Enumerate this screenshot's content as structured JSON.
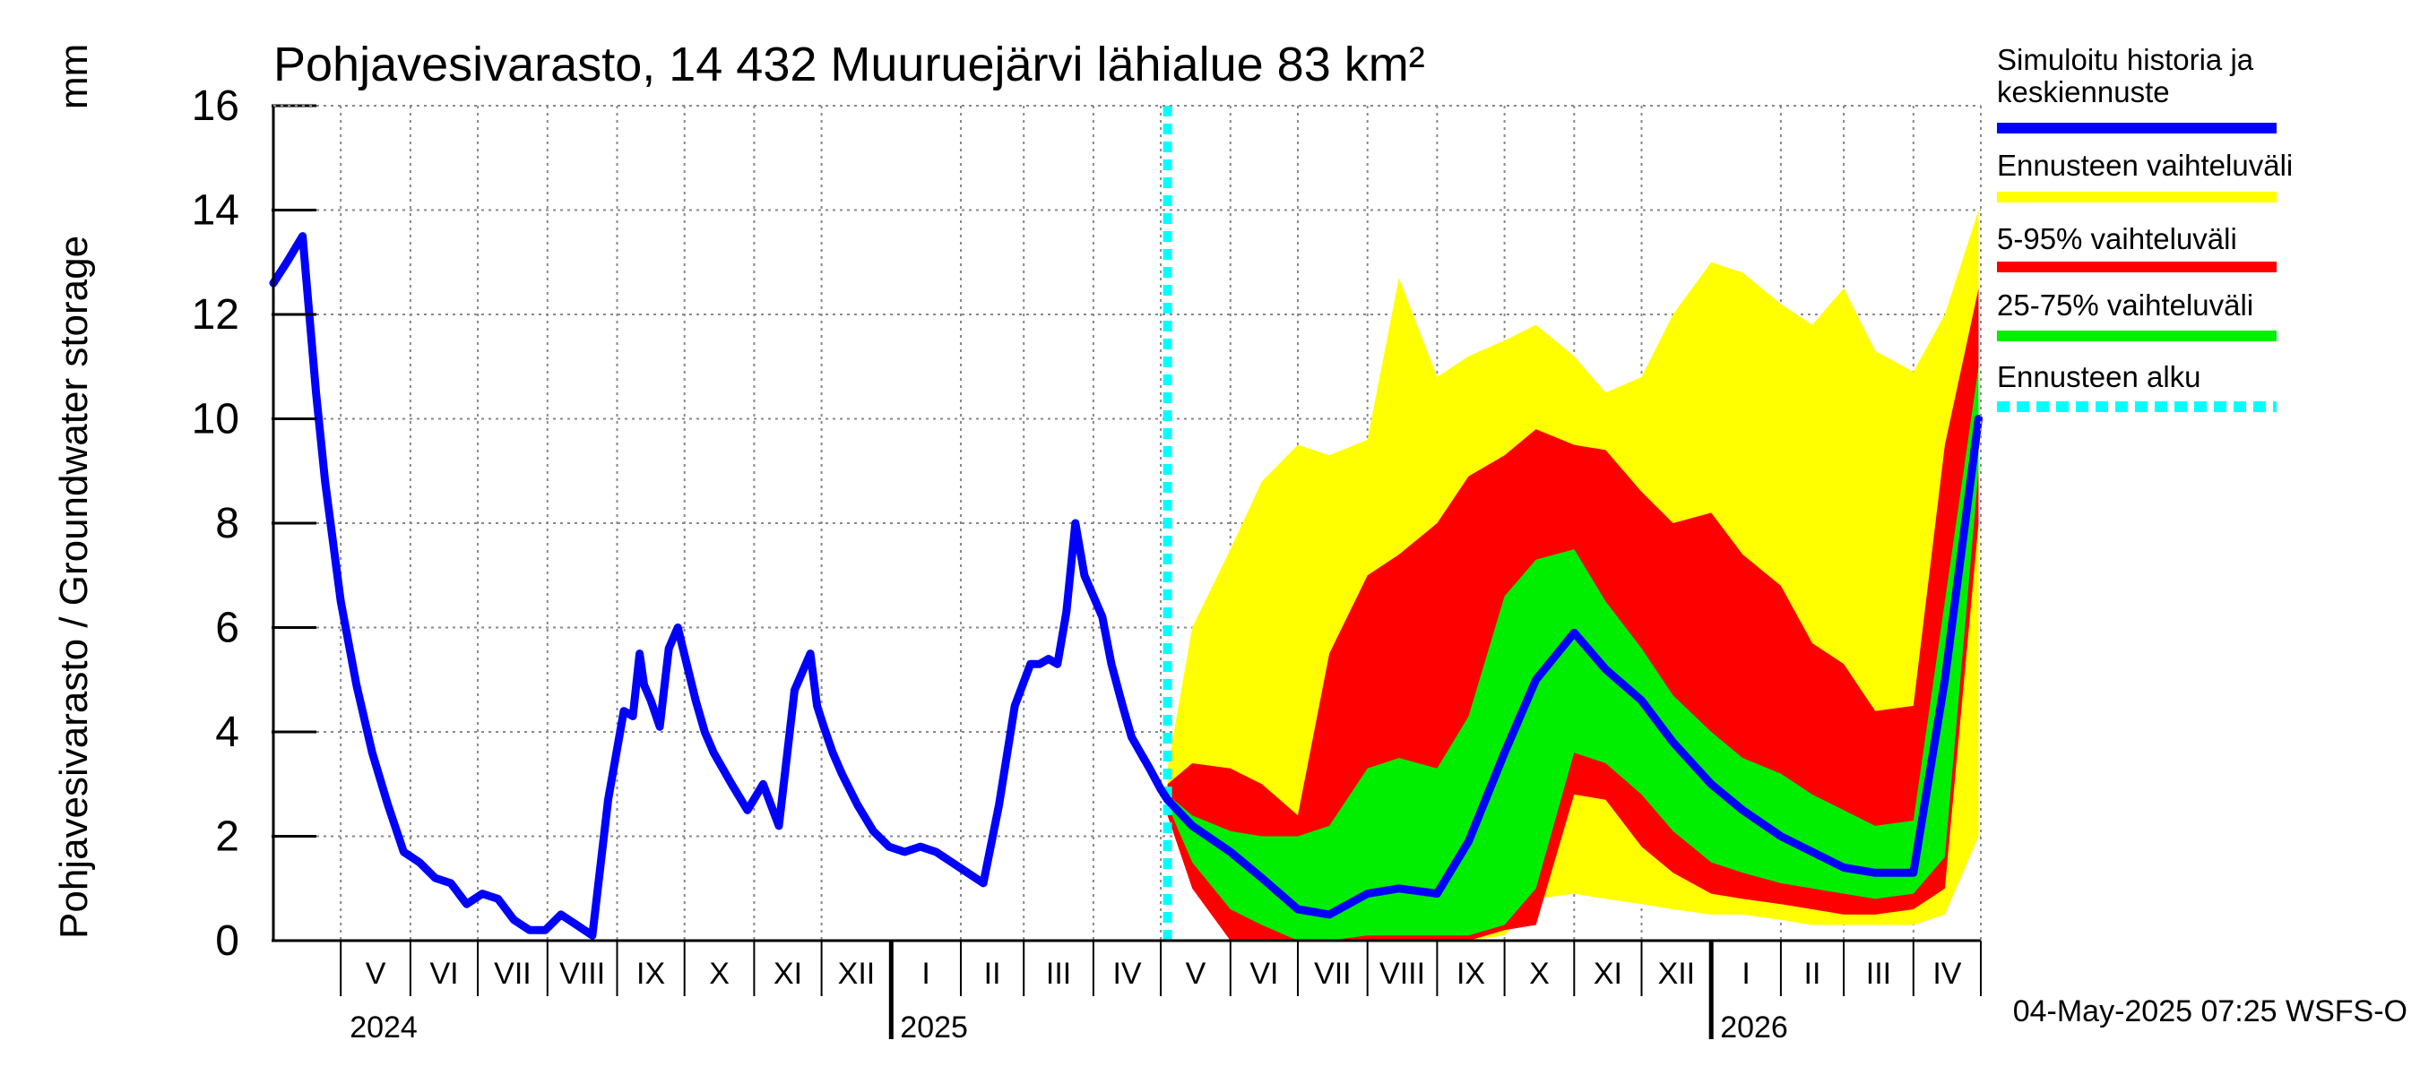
{
  "chart_data": {
    "type": "area",
    "title": "Pohjavesivarasto, 14 432 Muuruejärvi lähialue 83 km²",
    "ylabel": "Pohjavesivarasto / Groundwater storage",
    "yunit": "mm",
    "ylim": [
      0,
      16
    ],
    "yticks": [
      0,
      2,
      4,
      6,
      8,
      10,
      12,
      14,
      16
    ],
    "xlim": [
      "2024-04-01",
      "2026-05-01"
    ],
    "grid": true,
    "months": [
      {
        "label": "V",
        "start": "2024-05-01"
      },
      {
        "label": "VI",
        "start": "2024-06-01"
      },
      {
        "label": "VII",
        "start": "2024-07-01"
      },
      {
        "label": "VIII",
        "start": "2024-08-01"
      },
      {
        "label": "IX",
        "start": "2024-09-01"
      },
      {
        "label": "X",
        "start": "2024-10-01"
      },
      {
        "label": "XI",
        "start": "2024-11-01"
      },
      {
        "label": "XII",
        "start": "2024-12-01"
      },
      {
        "label": "I",
        "start": "2025-01-01"
      },
      {
        "label": "II",
        "start": "2025-02-01"
      },
      {
        "label": "III",
        "start": "2025-03-01"
      },
      {
        "label": "IV",
        "start": "2025-04-01"
      },
      {
        "label": "V",
        "start": "2025-05-01"
      },
      {
        "label": "VI",
        "start": "2025-06-01"
      },
      {
        "label": "VII",
        "start": "2025-07-01"
      },
      {
        "label": "VIII",
        "start": "2025-08-01"
      },
      {
        "label": "IX",
        "start": "2025-09-01"
      },
      {
        "label": "X",
        "start": "2025-10-01"
      },
      {
        "label": "XI",
        "start": "2025-11-01"
      },
      {
        "label": "XII",
        "start": "2025-12-01"
      },
      {
        "label": "I",
        "start": "2026-01-01"
      },
      {
        "label": "II",
        "start": "2026-02-01"
      },
      {
        "label": "III",
        "start": "2026-03-01"
      },
      {
        "label": "IV",
        "start": "2026-04-01"
      }
    ],
    "years": [
      {
        "label": "2024",
        "start": "2024-05-01"
      },
      {
        "label": "2025",
        "start": "2025-01-01"
      },
      {
        "label": "2026",
        "start": "2026-01-01"
      }
    ],
    "forecast_start": "2025-05-04",
    "history": {
      "x": [
        "2024-04-01",
        "2024-04-07",
        "2024-04-14",
        "2024-04-20",
        "2024-04-24",
        "2024-05-01",
        "2024-05-08",
        "2024-05-15",
        "2024-05-22",
        "2024-05-29",
        "2024-06-05",
        "2024-06-12",
        "2024-06-19",
        "2024-06-26",
        "2024-07-03",
        "2024-07-10",
        "2024-07-17",
        "2024-07-24",
        "2024-07-31",
        "2024-08-07",
        "2024-08-14",
        "2024-08-21",
        "2024-08-28",
        "2024-09-04",
        "2024-09-08",
        "2024-09-11",
        "2024-09-13",
        "2024-09-16",
        "2024-09-20",
        "2024-09-24",
        "2024-09-28",
        "2024-10-02",
        "2024-10-06",
        "2024-10-10",
        "2024-10-14",
        "2024-10-18",
        "2024-10-22",
        "2024-10-29",
        "2024-11-05",
        "2024-11-12",
        "2024-11-19",
        "2024-11-26",
        "2024-11-29",
        "2024-12-02",
        "2024-12-06",
        "2024-12-10",
        "2024-12-17",
        "2024-12-24",
        "2024-12-31",
        "2025-01-07",
        "2025-01-14",
        "2025-01-21",
        "2025-01-28",
        "2025-02-04",
        "2025-02-11",
        "2025-02-18",
        "2025-02-25",
        "2025-03-04",
        "2025-03-08",
        "2025-03-12",
        "2025-03-16",
        "2025-03-20",
        "2025-03-24",
        "2025-03-28",
        "2025-04-01",
        "2025-04-05",
        "2025-04-09",
        "2025-04-14",
        "2025-04-18",
        "2025-04-22",
        "2025-04-26",
        "2025-05-01",
        "2025-05-04"
      ],
      "y": [
        12.6,
        13.0,
        13.5,
        10.5,
        8.8,
        6.5,
        4.9,
        3.6,
        2.6,
        1.7,
        1.5,
        1.2,
        1.1,
        0.7,
        0.9,
        0.8,
        0.4,
        0.2,
        0.2,
        0.5,
        0.3,
        0.1,
        2.7,
        4.4,
        4.3,
        5.5,
        4.9,
        4.6,
        4.1,
        5.6,
        6.0,
        5.3,
        4.6,
        4.0,
        3.6,
        3.3,
        3.0,
        2.5,
        3.0,
        2.2,
        4.8,
        5.5,
        4.5,
        4.1,
        3.6,
        3.2,
        2.6,
        2.1,
        1.8,
        1.7,
        1.8,
        1.7,
        1.5,
        1.3,
        1.1,
        2.6,
        4.5,
        5.3,
        5.3,
        5.4,
        5.3,
        6.3,
        8.0,
        7.0,
        6.6,
        6.2,
        5.3,
        4.5,
        3.9,
        3.6,
        3.3,
        2.9,
        2.7
      ]
    },
    "forecast_x": [
      "2025-05-04",
      "2025-05-15",
      "2025-06-01",
      "2025-06-15",
      "2025-07-01",
      "2025-07-15",
      "2025-08-01",
      "2025-08-15",
      "2025-09-01",
      "2025-09-15",
      "2025-10-01",
      "2025-10-15",
      "2025-11-01",
      "2025-11-15",
      "2025-12-01",
      "2025-12-15",
      "2026-01-01",
      "2026-01-15",
      "2026-02-01",
      "2026-02-15",
      "2026-03-01",
      "2026-03-15",
      "2026-04-01",
      "2026-04-15",
      "2026-04-30"
    ],
    "bands": [
      {
        "name": "Ennusteen vaihteluväli",
        "color": "#ffff00",
        "upper": [
          3.3,
          6.0,
          7.5,
          8.8,
          9.5,
          9.3,
          9.6,
          12.7,
          10.8,
          11.2,
          11.5,
          11.8,
          11.2,
          10.5,
          10.8,
          12.0,
          13.0,
          12.8,
          12.2,
          11.8,
          12.5,
          11.3,
          10.9,
          12.0,
          14.0
        ],
        "lower": [
          2.6,
          1.6,
          0.6,
          0.1,
          0.0,
          0.0,
          0.0,
          0.0,
          0.0,
          0.0,
          0.1,
          0.8,
          0.9,
          0.8,
          0.7,
          0.6,
          0.5,
          0.5,
          0.4,
          0.3,
          0.3,
          0.3,
          0.3,
          0.5,
          2.0
        ]
      },
      {
        "name": "5-95% vaihteluväli",
        "color": "#ff0000",
        "upper": [
          3.0,
          3.4,
          3.3,
          3.0,
          2.4,
          5.5,
          7.0,
          7.4,
          8.0,
          8.9,
          9.3,
          9.8,
          9.5,
          9.4,
          8.6,
          8.0,
          8.2,
          7.4,
          6.8,
          5.7,
          5.3,
          4.4,
          4.5,
          9.5,
          12.5
        ],
        "lower": [
          2.4,
          1.0,
          0.0,
          0.0,
          0.0,
          0.0,
          0.0,
          0.0,
          0.0,
          0.0,
          0.2,
          0.3,
          2.8,
          2.7,
          1.8,
          1.3,
          0.9,
          0.8,
          0.7,
          0.6,
          0.5,
          0.5,
          0.6,
          1.0,
          8.0
        ]
      },
      {
        "name": "25-75% vaihteluväli",
        "color": "#00ee00",
        "upper": [
          2.8,
          2.4,
          2.1,
          2.0,
          2.0,
          2.2,
          3.3,
          3.5,
          3.3,
          4.3,
          6.6,
          7.3,
          7.5,
          6.5,
          5.6,
          4.7,
          4.0,
          3.5,
          3.2,
          2.8,
          2.5,
          2.2,
          2.3,
          6.5,
          11.0
        ],
        "lower": [
          2.6,
          1.5,
          0.6,
          0.3,
          0.0,
          0.0,
          0.1,
          0.1,
          0.1,
          0.1,
          0.3,
          1.0,
          3.6,
          3.4,
          2.8,
          2.1,
          1.5,
          1.3,
          1.1,
          1.0,
          0.9,
          0.8,
          0.9,
          1.6,
          9.0
        ]
      }
    ],
    "median": {
      "name": "Simuloitu historia ja keskiennuste",
      "color": "#0000ff",
      "y": [
        2.7,
        2.2,
        1.7,
        1.2,
        0.6,
        0.5,
        0.9,
        1.0,
        0.9,
        1.9,
        3.6,
        5.0,
        5.9,
        5.2,
        4.6,
        3.8,
        3.0,
        2.5,
        2.0,
        1.7,
        1.4,
        1.3,
        1.3,
        5.0,
        10.0
      ]
    },
    "legend": [
      {
        "label": "Simuloitu historia ja keskiennuste",
        "color": "#0000ff",
        "style": "solid"
      },
      {
        "label": "Ennusteen vaihteluväli",
        "color": "#ffff00",
        "style": "solid"
      },
      {
        "label": "5-95% vaihteluväli",
        "color": "#ff0000",
        "style": "solid"
      },
      {
        "label": "25-75% vaihteluväli",
        "color": "#00ee00",
        "style": "solid"
      },
      {
        "label": "Ennusteen alku",
        "color": "#00ffff",
        "style": "dashed"
      }
    ],
    "legend_position": "right",
    "timestamp": "04-May-2025 07:25 WSFS-O"
  }
}
